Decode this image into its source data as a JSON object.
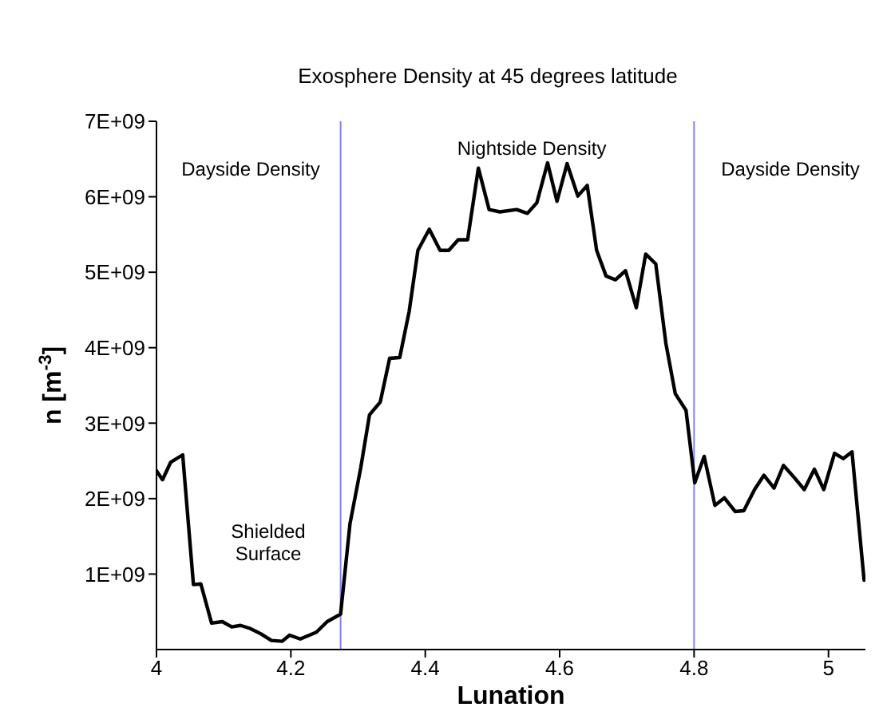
{
  "chart_data": {
    "type": "line",
    "title": "Exosphere Density at 45 degrees latitude",
    "xlabel": "Lunation",
    "ylabel": "n [m$^{-3}$]",
    "series": [
      {
        "color": "#000000",
        "x": [
          4.0,
          4.009,
          4.021,
          4.039,
          4.055,
          4.066,
          4.082,
          4.098,
          4.112,
          4.125,
          4.139,
          4.155,
          4.171,
          4.187,
          4.198,
          4.214,
          4.238,
          4.254,
          4.274,
          4.288,
          4.304,
          4.317,
          4.333,
          4.347,
          4.362,
          4.376,
          4.389,
          4.406,
          4.422,
          4.435,
          4.449,
          4.463,
          4.479,
          4.495,
          4.511,
          4.536,
          4.552,
          4.566,
          4.582,
          4.596,
          4.611,
          4.627,
          4.641,
          4.655,
          4.669,
          4.683,
          4.698,
          4.714,
          4.728,
          4.743,
          4.758,
          4.772,
          4.788,
          4.801,
          4.815,
          4.831,
          4.845,
          4.861,
          4.874,
          4.89,
          4.904,
          4.919,
          4.933,
          4.949,
          4.964,
          4.979,
          4.993,
          5.009,
          5.022,
          5.035,
          5.053
        ],
        "values": [
          2370000000.0,
          2250000000.0,
          2480000000.0,
          2580000000.0,
          860000000.0,
          870000000.0,
          350000000.0,
          370000000.0,
          300000000.0,
          320000000.0,
          280000000.0,
          210000000.0,
          120000000.0,
          110000000.0,
          190000000.0,
          140000000.0,
          230000000.0,
          370000000.0,
          470000000.0,
          1670000000.0,
          2410000000.0,
          3110000000.0,
          3280000000.0,
          3860000000.0,
          3870000000.0,
          4480000000.0,
          5290000000.0,
          5570000000.0,
          5290000000.0,
          5290000000.0,
          5430000000.0,
          5430000000.0,
          6380000000.0,
          5830000000.0,
          5800000000.0,
          5830000000.0,
          5780000000.0,
          5920000000.0,
          6450000000.0,
          5940000000.0,
          6440000000.0,
          6010000000.0,
          6150000000.0,
          5290000000.0,
          4950000000.0,
          4900000000.0,
          5020000000.0,
          4530000000.0,
          5240000000.0,
          5110000000.0,
          4060000000.0,
          3390000000.0,
          3170000000.0,
          2210000000.0,
          2560000000.0,
          1910000000.0,
          2010000000.0,
          1830000000.0,
          1840000000.0,
          2120000000.0,
          2310000000.0,
          2140000000.0,
          2440000000.0,
          2280000000.0,
          2120000000.0,
          2390000000.0,
          2120000000.0,
          2600000000.0,
          2530000000.0,
          2620000000.0,
          920000000.0
        ]
      }
    ],
    "xlim": [
      4,
      5.055
    ],
    "xticks": [
      4,
      4.2,
      4.4,
      4.6,
      4.8,
      5
    ],
    "ylim": [
      0,
      7000000000.0
    ],
    "yticks": [
      {
        "value": 1000000000.0,
        "label": "1E+09"
      },
      {
        "value": 2000000000.0,
        "label": "2E+09"
      },
      {
        "value": 3000000000.0,
        "label": "3E+09"
      },
      {
        "value": 4000000000.0,
        "label": "4E+09"
      },
      {
        "value": 5000000000.0,
        "label": "5E+09"
      },
      {
        "value": 6000000000.0,
        "label": "6E+09"
      },
      {
        "value": 7000000000.0,
        "label": "7E+09"
      }
    ],
    "ref_lines": [
      {
        "axis": "x",
        "value": 4.274,
        "color": "#8080ff"
      },
      {
        "axis": "x",
        "value": 4.8,
        "color": "#8080ff"
      }
    ],
    "annotations": [
      "Dayside Density",
      "Nightside Density",
      "Dayside Density",
      "Shielded\nSurface"
    ],
    "grid": false,
    "legend": false,
    "marker": "none",
    "line_style": "solid"
  }
}
